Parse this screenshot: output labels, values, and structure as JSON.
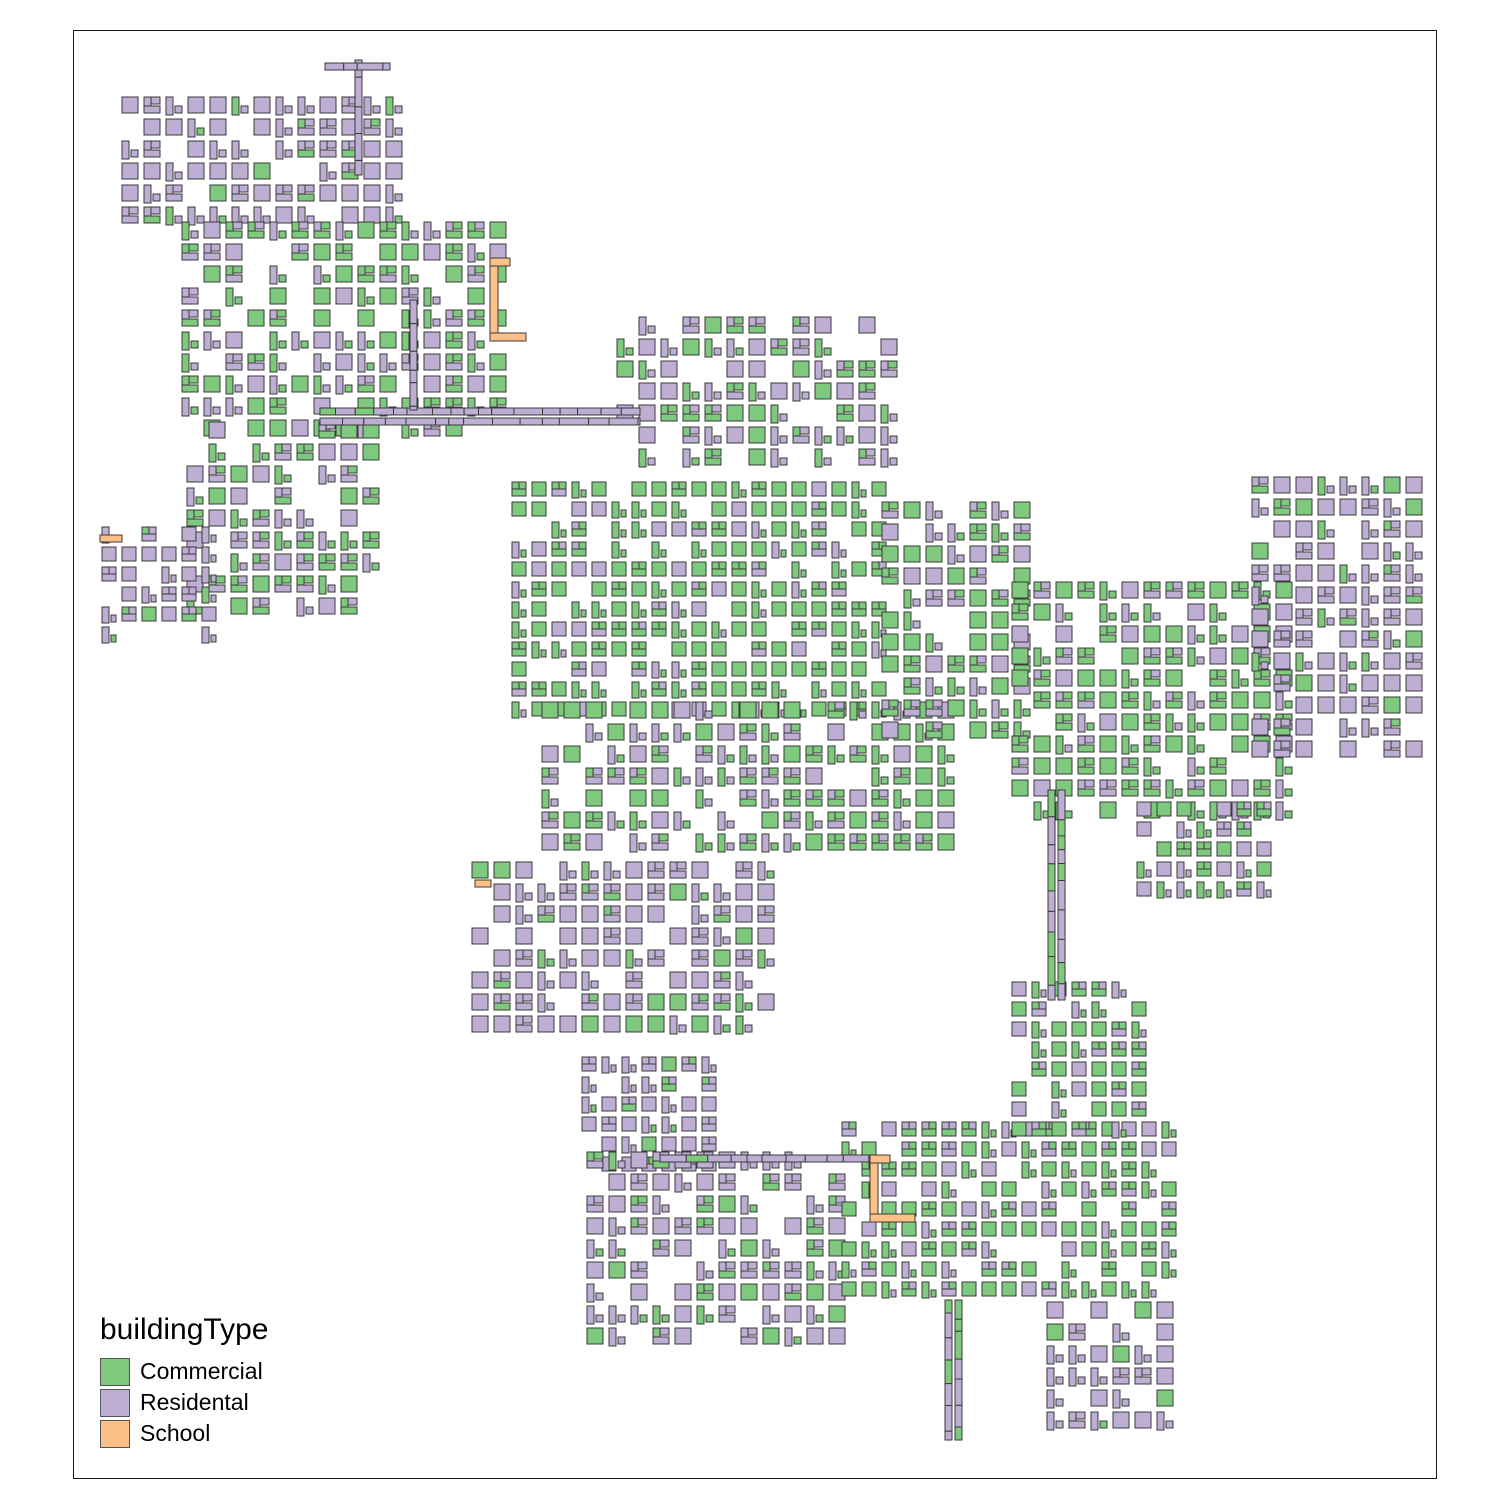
{
  "legend": {
    "title": "buildingType",
    "items": [
      {
        "label": "Commercial",
        "color": "#7fc97f"
      },
      {
        "label": "Residental",
        "color": "#beaed4"
      },
      {
        "label": "School",
        "color": "#fdc086"
      }
    ]
  },
  "style": {
    "background": "#ffffff",
    "panel_border": "#1a1a1a",
    "building_outline": "#3a3a3a"
  }
}
